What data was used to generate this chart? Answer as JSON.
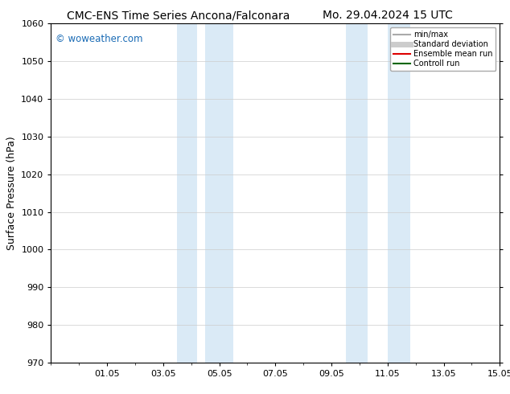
{
  "title_left": "CMC-ENS Time Series Ancona/Falconara",
  "title_right": "Mo. 29.04.2024 15 UTC",
  "ylabel": "Surface Pressure (hPa)",
  "ylim": [
    970,
    1060
  ],
  "yticks": [
    970,
    980,
    990,
    1000,
    1010,
    1020,
    1030,
    1040,
    1050,
    1060
  ],
  "xtick_labels": [
    "01.05",
    "03.05",
    "05.05",
    "07.05",
    "09.05",
    "11.05",
    "13.05",
    "15.05"
  ],
  "xtick_positions": [
    2,
    4,
    6,
    8,
    10,
    12,
    14,
    16
  ],
  "xlim": [
    0,
    16
  ],
  "shaded_bands": [
    {
      "x_start": 4.5,
      "x_end": 5.2,
      "color": "#daeaf6"
    },
    {
      "x_start": 5.5,
      "x_end": 6.5,
      "color": "#daeaf6"
    },
    {
      "x_start": 10.5,
      "x_end": 11.3,
      "color": "#daeaf6"
    },
    {
      "x_start": 12.0,
      "x_end": 12.8,
      "color": "#daeaf6"
    }
  ],
  "watermark": "© woweather.com",
  "watermark_color": "#1a6bb5",
  "legend_items": [
    {
      "label": "min/max",
      "color": "#aaaaaa",
      "lw": 1.5,
      "style": "solid"
    },
    {
      "label": "Standard deviation",
      "color": "#cccccc",
      "lw": 5,
      "style": "solid"
    },
    {
      "label": "Ensemble mean run",
      "color": "#dd0000",
      "lw": 1.5,
      "style": "solid"
    },
    {
      "label": "Controll run",
      "color": "#006600",
      "lw": 1.5,
      "style": "solid"
    }
  ],
  "bg_color": "#ffffff",
  "grid_color": "#cccccc",
  "title_fontsize": 10,
  "ylabel_fontsize": 9,
  "tick_fontsize": 8,
  "watermark_fontsize": 8.5,
  "legend_fontsize": 7
}
